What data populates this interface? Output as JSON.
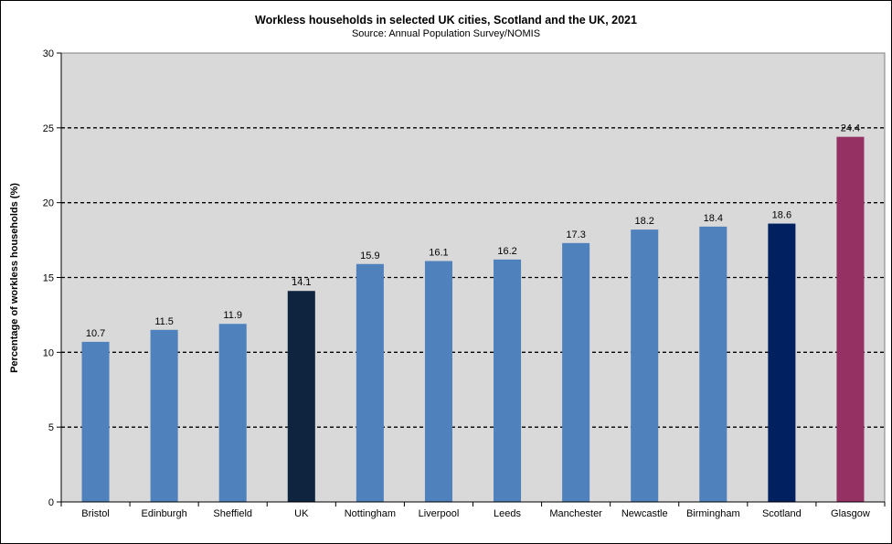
{
  "chart_data": {
    "type": "bar",
    "title": "Workless households in selected UK cities, Scotland and the UK, 2021",
    "subtitle": "Source: Annual Population Survey/NOMIS",
    "xlabel": "",
    "ylabel": "Percentage of workless households (%)",
    "ylim": [
      0,
      30
    ],
    "yticks": [
      "0",
      "5",
      "10",
      "15",
      "20",
      "25",
      "30"
    ],
    "grid": "dashed horizontal",
    "legend": "none",
    "plot_background": "#d9d9d9",
    "categories": [
      "Bristol",
      "Edinburgh",
      "Sheffield",
      "UK",
      "Nottingham",
      "Liverpool",
      "Leeds",
      "Manchester",
      "Newcastle",
      "Birmingham",
      "Scotland",
      "Glasgow"
    ],
    "values": [
      10.7,
      11.5,
      11.9,
      14.1,
      15.9,
      16.1,
      16.2,
      17.3,
      18.2,
      18.4,
      18.6,
      24.4
    ],
    "data_labels": [
      "10.7",
      "11.5",
      "11.9",
      "14.1",
      "15.9",
      "16.1",
      "16.2",
      "17.3",
      "18.2",
      "18.4",
      "18.6",
      "24.4"
    ],
    "colors": [
      "#4f81bd",
      "#4f81bd",
      "#4f81bd",
      "#0f243e",
      "#4f81bd",
      "#4f81bd",
      "#4f81bd",
      "#4f81bd",
      "#4f81bd",
      "#4f81bd",
      "#002060",
      "#953163"
    ]
  }
}
